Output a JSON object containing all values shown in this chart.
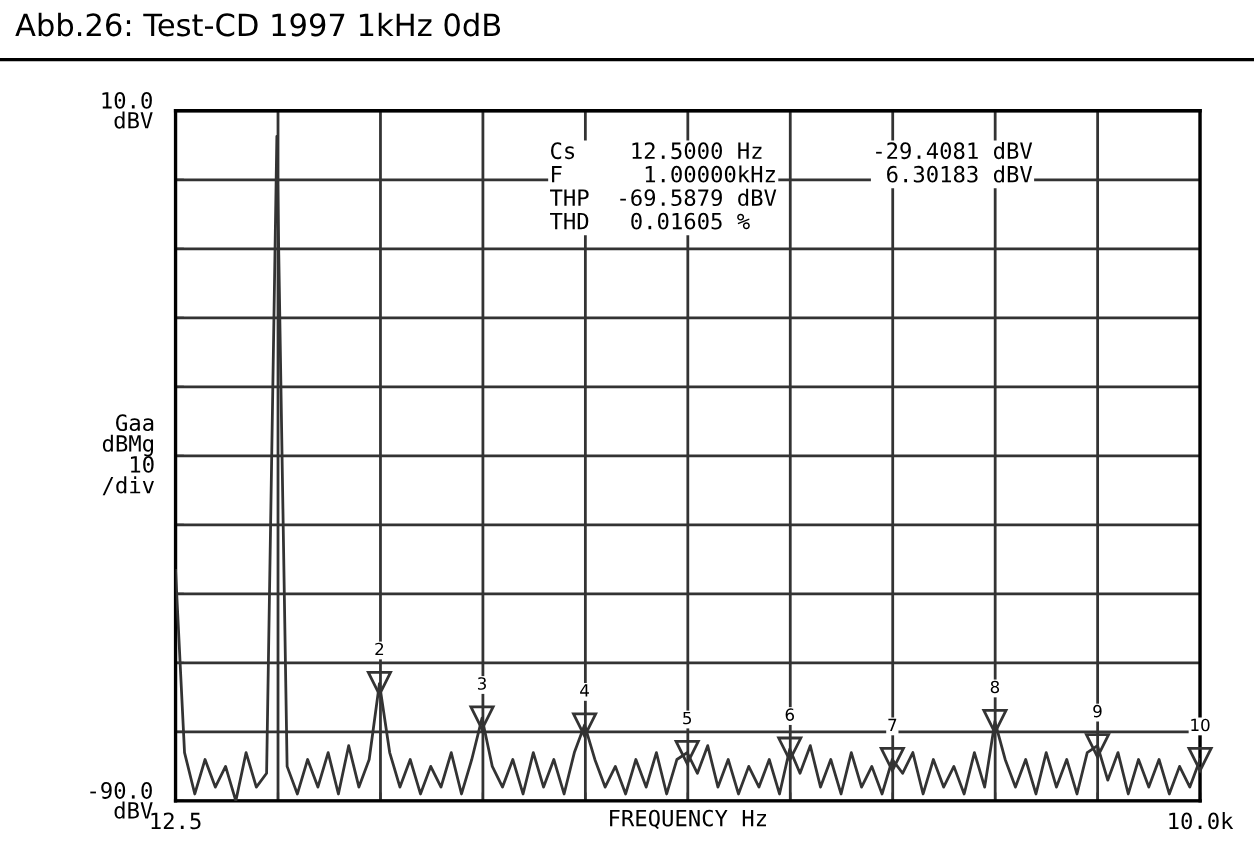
{
  "chart_data": {
    "type": "line",
    "title": "Abb.26: Test-CD 1997 1kHz 0dB",
    "xlabel": "FREQUENCY Hz",
    "ylabel": "Gaa\ndBMg\n10\n/div",
    "x": [
      12.5,
      100,
      200,
      300,
      400,
      500,
      600,
      700,
      800,
      900,
      1000,
      1100,
      1200,
      1300,
      1400,
      1500,
      1600,
      1700,
      1800,
      1900,
      2000,
      2100,
      2200,
      2300,
      2400,
      2500,
      2600,
      2700,
      2800,
      2900,
      3000,
      3100,
      3200,
      3300,
      3400,
      3500,
      3600,
      3700,
      3800,
      3900,
      4000,
      4100,
      4200,
      4300,
      4400,
      4500,
      4600,
      4700,
      4800,
      4900,
      5000,
      5100,
      5200,
      5300,
      5400,
      5500,
      5600,
      5700,
      5800,
      5900,
      6000,
      6100,
      6200,
      6300,
      6400,
      6500,
      6600,
      6700,
      6800,
      6900,
      7000,
      7100,
      7200,
      7300,
      7400,
      7500,
      7600,
      7700,
      7800,
      7900,
      8000,
      8100,
      8200,
      8300,
      8400,
      8500,
      8600,
      8700,
      8800,
      8900,
      9000,
      9100,
      9200,
      9300,
      9400,
      9500,
      9600,
      9700,
      9800,
      9900,
      10000
    ],
    "series": [
      {
        "color": "#333333",
        "values": [
          -56.6,
          -83,
          -89,
          -84,
          -88,
          -85,
          -90,
          -83,
          -88,
          -86,
          6.3,
          -85,
          -89,
          -84,
          -88,
          -83,
          -89,
          -82,
          -88,
          -84,
          -73,
          -83,
          -88,
          -84,
          -89,
          -85,
          -88,
          -83,
          -89,
          -84,
          -78,
          -85,
          -88,
          -84,
          -89,
          -83,
          -88,
          -84,
          -89,
          -83,
          -79,
          -84,
          -88,
          -85,
          -89,
          -84,
          -88,
          -83,
          -89,
          -84,
          -83,
          -86,
          -82,
          -88,
          -84,
          -89,
          -85,
          -88,
          -84,
          -89,
          -82.5,
          -86,
          -82,
          -88,
          -84,
          -89,
          -83,
          -88,
          -85,
          -89,
          -84,
          -86,
          -83,
          -89,
          -84,
          -88,
          -85,
          -89,
          -83,
          -88,
          -78.5,
          -84,
          -88,
          -84,
          -89,
          -83,
          -88,
          -84,
          -89,
          -83,
          -82,
          -87,
          -83,
          -89,
          -84,
          -88,
          -84,
          -89,
          -85,
          -88,
          -84
        ]
      }
    ],
    "xlim": [
      12.5,
      10000
    ],
    "xticks": [
      {
        "value": 12.5,
        "label": "12.5"
      },
      {
        "value": 1011.25,
        "label": null
      },
      {
        "value": 2010,
        "label": null
      },
      {
        "value": 3008.75,
        "label": null
      },
      {
        "value": 4007.5,
        "label": null
      },
      {
        "value": 5006.25,
        "label": null
      },
      {
        "value": 6005,
        "label": null
      },
      {
        "value": 7003.75,
        "label": null
      },
      {
        "value": 8002.5,
        "label": null
      },
      {
        "value": 9001.25,
        "label": null
      },
      {
        "value": 10000,
        "label": "10.0k"
      }
    ],
    "ylim": [
      -90,
      10
    ],
    "yticks": [
      {
        "value": -90,
        "label": "-90.0\ndBV"
      },
      {
        "value": -80,
        "label": null
      },
      {
        "value": -70,
        "label": null
      },
      {
        "value": -60,
        "label": null
      },
      {
        "value": -50,
        "label": null
      },
      {
        "value": -40,
        "label": null
      },
      {
        "value": -30,
        "label": null
      },
      {
        "value": -20,
        "label": null
      },
      {
        "value": -10,
        "label": null
      },
      {
        "value": 0,
        "label": null
      },
      {
        "value": 10,
        "label": "10.0\ndBV"
      }
    ],
    "grid": true,
    "marker": "none",
    "line_style": "solid",
    "annotations": [
      "Cs    12.5000 Hz",
      "F      1.00000kHz",
      "THP  -69.5879 dBV",
      "THD   0.01605 %",
      "-29.4081 dBV",
      " 6.30183 dBV",
      {
        "text": "2",
        "x": 2000,
        "y": -73
      },
      {
        "text": "3",
        "x": 3000,
        "y": -78
      },
      {
        "text": "4",
        "x": 4000,
        "y": -79
      },
      {
        "text": "5",
        "x": 5000,
        "y": -83
      },
      {
        "text": "6",
        "x": 6000,
        "y": -82.5
      },
      {
        "text": "7",
        "x": 7000,
        "y": -84
      },
      {
        "text": "8",
        "x": 8000,
        "y": -78.5
      },
      {
        "text": "9",
        "x": 9000,
        "y": -82
      },
      {
        "text": "10",
        "x": 10000,
        "y": -84
      }
    ]
  }
}
